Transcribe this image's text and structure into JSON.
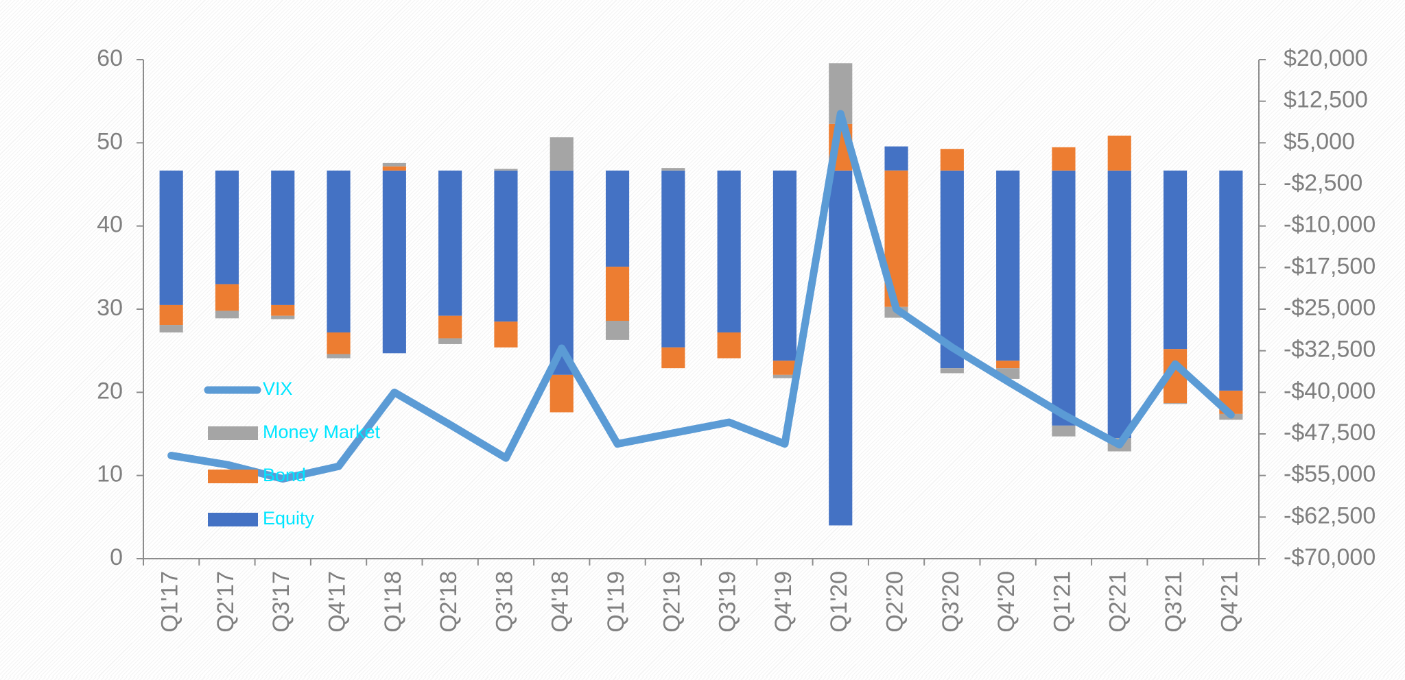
{
  "chart_data": {
    "type": "bar_line",
    "categories": [
      "Q1'17",
      "Q2'17",
      "Q3'17",
      "Q4'17",
      "Q1'18",
      "Q2'18",
      "Q3'18",
      "Q4'18",
      "Q1'19",
      "Q2'19",
      "Q3'19",
      "Q4'19",
      "Q1'20",
      "Q2'20",
      "Q3'20",
      "Q4'20",
      "Q1'21",
      "Q2'21",
      "Q3'21",
      "Q4'21"
    ],
    "series": [
      {
        "name": "Equity",
        "type": "bar",
        "axis": "y2",
        "color": "#4472c4",
        "values": [
          -24250,
          -20500,
          -24250,
          -29200,
          -32950,
          -26200,
          -27250,
          -36850,
          -17350,
          -31900,
          -29200,
          -34300,
          -64000,
          4350,
          -35650,
          -34300,
          -46000,
          -48250,
          -32200,
          -39700
        ]
      },
      {
        "name": "Bond",
        "type": "bar",
        "axis": "y2",
        "color": "#ed7d31",
        "values": [
          -3600,
          -4800,
          -1950,
          -3900,
          750,
          -4050,
          -4650,
          -6750,
          -9750,
          -3750,
          -4650,
          -2550,
          8400,
          -24600,
          3900,
          -1350,
          4200,
          6300,
          -9750,
          -4200
        ]
      },
      {
        "name": "Money Market",
        "type": "bar",
        "axis": "y2",
        "color": "#a5a5a5",
        "values": [
          -1350,
          -1350,
          -600,
          -750,
          600,
          -1050,
          300,
          6000,
          -3450,
          450,
          0,
          -600,
          10950,
          -1950,
          -900,
          -1950,
          -1950,
          -2400,
          -150,
          -1050
        ]
      },
      {
        "name": "VIX",
        "type": "line",
        "axis": "y",
        "color": "#5b9bd5",
        "values": [
          12.4,
          11.3,
          9.6,
          11.1,
          20.0,
          16.1,
          12.1,
          25.3,
          13.8,
          15.1,
          16.4,
          13.8,
          53.5,
          30.0,
          25.4,
          21.3,
          17.3,
          13.7,
          23.4,
          17.3
        ]
      }
    ],
    "ylim": [
      0,
      60
    ],
    "yticks": [
      0,
      10,
      20,
      30,
      40,
      50,
      60
    ],
    "y2lim": [
      -70000,
      20000
    ],
    "y2ticks": [
      {
        "value": 20000,
        "label": "$20,000"
      },
      {
        "value": 12500,
        "label": "$12,500"
      },
      {
        "value": 5000,
        "label": "$5,000"
      },
      {
        "value": -2500,
        "label": "-$2,500"
      },
      {
        "value": -10000,
        "label": "-$10,000"
      },
      {
        "value": -17500,
        "label": "-$17,500"
      },
      {
        "value": -25000,
        "label": "-$25,000"
      },
      {
        "value": -32500,
        "label": "-$32,500"
      },
      {
        "value": -40000,
        "label": "-$40,000"
      },
      {
        "value": -47500,
        "label": "-$47,500"
      },
      {
        "value": -55000,
        "label": "-$55,000"
      },
      {
        "value": -62500,
        "label": "-$62,500"
      },
      {
        "value": -70000,
        "label": "-$70,000"
      }
    ],
    "legend": "left",
    "legend_text_color": "#00e5ff",
    "grid": false
  }
}
